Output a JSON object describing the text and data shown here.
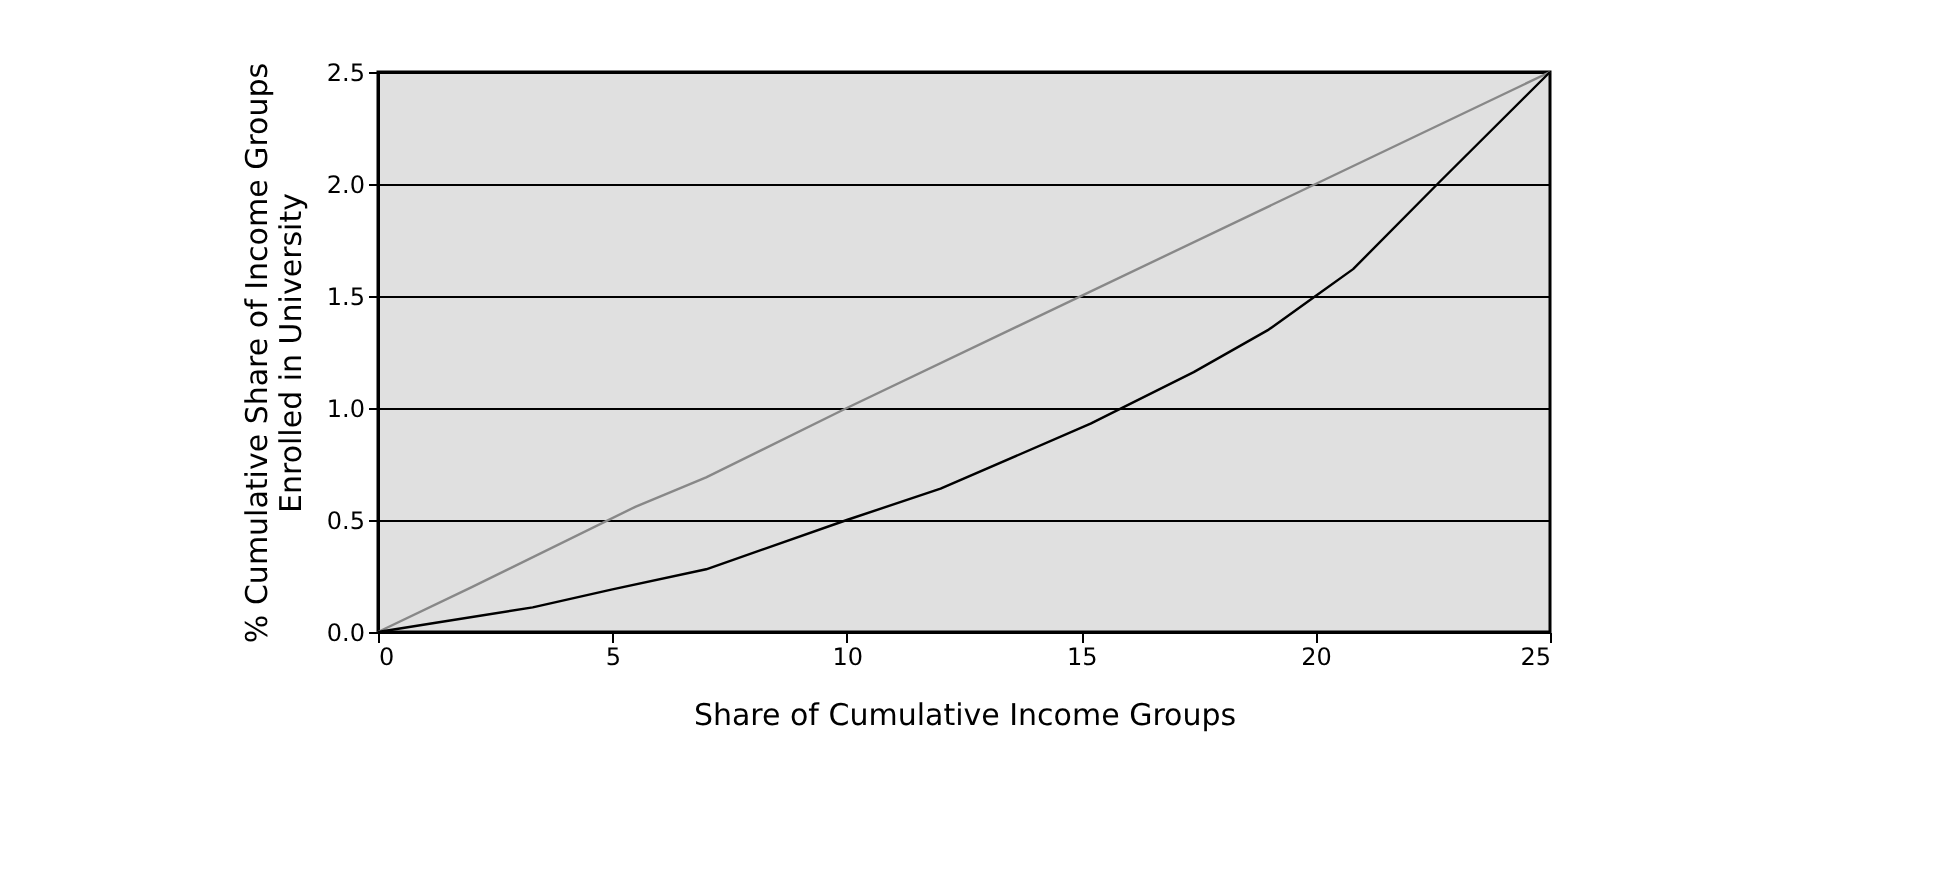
{
  "chart_data": {
    "type": "line",
    "xlabel": "Share of Cumulative Income Groups",
    "ylabel": "% Cumulative Share of Income Groups Enrolled in University",
    "xlim": [
      0,
      25
    ],
    "xticks": [
      0,
      5,
      10,
      15,
      20,
      25
    ],
    "ylim": [
      0,
      2.5
    ],
    "yticks": [
      {
        "value": 0,
        "label": "0.0"
      },
      {
        "value": 0.5,
        "label": "0.5"
      },
      {
        "value": 1,
        "label": "1.0"
      },
      {
        "value": 1.5,
        "label": "1.5"
      },
      {
        "value": 2,
        "label": "2.0"
      },
      {
        "value": 2.5,
        "label": "2.5"
      }
    ],
    "grid": "y",
    "legend": false,
    "line_style": "solid",
    "series": [
      {
        "color": "#888888",
        "x": [
          0,
          2,
          5.5,
          7,
          10,
          20,
          22.5,
          25
        ],
        "values": [
          0,
          0.2,
          0.56,
          0.69,
          1.0,
          2.0,
          2.25,
          2.5
        ]
      },
      {
        "color": "#000000",
        "x": [
          0,
          1.2,
          3.3,
          5,
          7,
          10,
          12,
          15.2,
          17.4,
          19,
          20,
          20.8,
          22.6,
          25
        ],
        "values": [
          0,
          0.04,
          0.11,
          0.19,
          0.28,
          0.5,
          0.64,
          0.93,
          1.16,
          1.35,
          1.5,
          1.62,
          2.0,
          2.5
        ]
      }
    ]
  }
}
